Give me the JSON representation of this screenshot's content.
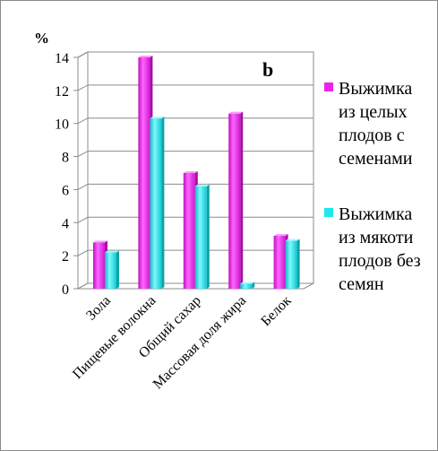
{
  "chart_data": {
    "type": "bar",
    "title": "",
    "panel_label": "b",
    "ylabel": "%",
    "xlabel": "",
    "ylim": [
      0,
      14
    ],
    "yticks": [
      "0",
      "2",
      "4",
      "6",
      "8",
      "10",
      "12",
      "14"
    ],
    "grid": true,
    "legend_position": "right",
    "categories": [
      "Зола",
      "Пищевые волокна",
      "Общий сахар",
      "Массовая доля жира",
      "Белок"
    ],
    "series": [
      {
        "name": "Выжимка из целых плодов с семенами",
        "legend_lines": [
          "Выжимка",
          "из целых",
          "плодов с",
          "семенами"
        ],
        "color": "#ee22ee",
        "values": [
          2.8,
          14.0,
          7.0,
          10.6,
          3.2
        ]
      },
      {
        "name": "Выжимка из мякоти плодов без семян",
        "legend_lines": [
          "Выжимка",
          "из мякоти",
          "плодов без",
          "семян"
        ],
        "color": "#1ee8ee",
        "values": [
          2.2,
          10.3,
          6.2,
          0.3,
          2.9
        ]
      }
    ]
  }
}
